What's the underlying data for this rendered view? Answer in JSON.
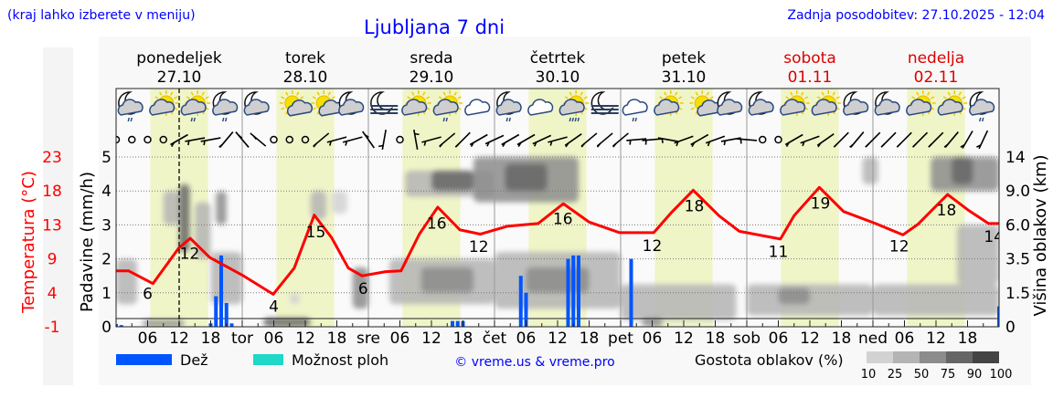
{
  "header": {
    "hint": "(kraj lahko izberete v meniju)",
    "title": "Ljubljana 7 dni",
    "updated": "Zadnja posodobitev: 27.10.2025 - 12:04"
  },
  "days": [
    {
      "name": "ponedeljek",
      "date": "27.10",
      "weekend": false
    },
    {
      "name": "torek",
      "date": "28.10",
      "weekend": false
    },
    {
      "name": "sreda",
      "date": "29.10",
      "weekend": false
    },
    {
      "name": "četrtek",
      "date": "30.10",
      "weekend": false
    },
    {
      "name": "petek",
      "date": "31.10",
      "weekend": false
    },
    {
      "name": "sobota",
      "date": "01.11",
      "weekend": true
    },
    {
      "name": "nedelja",
      "date": "02.11",
      "weekend": true
    }
  ],
  "colors": {
    "temperature": "#ff0000",
    "rain": "#0055ff",
    "showers": "#20d8c8",
    "daylight": "#f0f5c8",
    "link": "#0000ff",
    "weekend": "#dd0000"
  },
  "chart_data": {
    "type": "meteogram",
    "now_hour": 12,
    "x_tick_labels": [
      "06",
      "12",
      "18",
      "tor",
      "06",
      "12",
      "18",
      "sre",
      "06",
      "12",
      "18",
      "čet",
      "06",
      "12",
      "18",
      "pet",
      "06",
      "12",
      "18",
      "sob",
      "06",
      "12",
      "18",
      "ned",
      "06",
      "12",
      "18"
    ],
    "temperature_axis": {
      "label": "Temperatura (°C)",
      "ticks": [
        "23",
        "18",
        "13",
        "9",
        "4",
        "-1"
      ],
      "range": [
        -1,
        23
      ]
    },
    "precip_axis": {
      "label": "Padavine (mm/h)",
      "ticks": [
        "5",
        "4",
        "3",
        "2",
        "1",
        "0"
      ],
      "range": [
        0,
        5
      ]
    },
    "cloud_axis": {
      "label": "Višina oblakov (km)",
      "ticks": [
        "14",
        "9.0",
        "6.0",
        "3.5",
        "1.5",
        "0"
      ]
    },
    "temperature": [
      [
        0,
        6.9
      ],
      [
        2.4,
        6.9
      ],
      [
        7,
        5.1
      ],
      [
        11.9,
        10.1
      ],
      [
        14.1,
        11.5
      ],
      [
        17.8,
        8.8
      ],
      [
        24,
        6.3
      ],
      [
        29.9,
        3.6
      ],
      [
        33.9,
        7.3
      ],
      [
        37.7,
        14.8
      ],
      [
        41,
        11.6
      ],
      [
        44.2,
        7.3
      ],
      [
        46.8,
        6.2
      ],
      [
        51.3,
        6.8
      ],
      [
        54.2,
        6.9
      ],
      [
        57.7,
        12.1
      ],
      [
        61.2,
        15.9
      ],
      [
        65.4,
        12.7
      ],
      [
        69.3,
        12.1
      ],
      [
        74.4,
        13.2
      ],
      [
        80.3,
        13.6
      ],
      [
        85.1,
        16.4
      ],
      [
        90,
        13.8
      ],
      [
        95.8,
        12.3
      ],
      [
        102.3,
        12.3
      ],
      [
        105.6,
        15.1
      ],
      [
        109.8,
        18.3
      ],
      [
        114.7,
        14.7
      ],
      [
        118.6,
        12.5
      ],
      [
        126.4,
        11.4
      ],
      [
        129,
        14.7
      ],
      [
        133.8,
        18.7
      ],
      [
        138.4,
        15.3
      ],
      [
        144.5,
        13.6
      ],
      [
        149.7,
        12
      ],
      [
        152.6,
        13.5
      ],
      [
        158.2,
        17.7
      ],
      [
        162.1,
        15.5
      ],
      [
        166,
        13.6
      ],
      [
        168,
        13.6
      ]
    ],
    "temperature_labels": [
      {
        "hour": 6,
        "value": "6"
      },
      {
        "hour": 14,
        "value": "12"
      },
      {
        "hour": 30,
        "value": "4"
      },
      {
        "hour": 38,
        "value": "15"
      },
      {
        "hour": 47,
        "value": "6"
      },
      {
        "hour": 61,
        "value": "16"
      },
      {
        "hour": 69,
        "value": "12"
      },
      {
        "hour": 85,
        "value": "16"
      },
      {
        "hour": 102,
        "value": "12"
      },
      {
        "hour": 110,
        "value": "18"
      },
      {
        "hour": 126,
        "value": "11"
      },
      {
        "hour": 134,
        "value": "19"
      },
      {
        "hour": 149,
        "value": "12"
      },
      {
        "hour": 158,
        "value": "18"
      },
      {
        "hour": 167,
        "value": "14"
      }
    ],
    "rain_mmh": [
      [
        0,
        0.08
      ],
      [
        1,
        0.05
      ],
      [
        18,
        0.1
      ],
      [
        19,
        0.9
      ],
      [
        20,
        2.1
      ],
      [
        21,
        0.7
      ],
      [
        22,
        0.1
      ],
      [
        64,
        0.17
      ],
      [
        65,
        0.17
      ],
      [
        66,
        0.17
      ],
      [
        77,
        1.5
      ],
      [
        78,
        1.0
      ],
      [
        86,
        2.0
      ],
      [
        87,
        2.1
      ],
      [
        88,
        2.1
      ],
      [
        98,
        2.0
      ],
      [
        168,
        0.6
      ]
    ],
    "icons": [
      "night-cloud-rain",
      "sun-cloud",
      "sun-cloud-rain",
      "night-cloud-rain",
      "night-cloud",
      "sun-small-cloud",
      "sun-small-cloud",
      "night-cloud",
      "night-fog",
      "sun-cloud",
      "sun-cloud-rain",
      "cloud",
      "night-cloud-rain",
      "cloud",
      "sun-cloud-heavy-rain",
      "night-fog",
      "cloud-rain",
      "sun-cloud",
      "sun-small-cloud",
      "night-cloud",
      "night-cloud",
      "sun-cloud",
      "sun-cloud",
      "night-cloud",
      "night-cloud",
      "sun-cloud",
      "sun-cloud",
      "night-cloud-rain"
    ],
    "wind": [
      "calm",
      "calm",
      "calm",
      "calm",
      30,
      10,
      10,
      50,
      -50,
      -40,
      "calm",
      "calm",
      "calm",
      40,
      15,
      15,
      -55,
      80,
      "calm",
      -80,
      15,
      40,
      45,
      30,
      25,
      30,
      30,
      25,
      15,
      35,
      40,
      40,
      40,
      5,
      5,
      -10,
      20,
      30,
      20,
      10,
      -5,
      "calm",
      "calm",
      30,
      20,
      35,
      45,
      50,
      45,
      45,
      45,
      45,
      45,
      50,
      60,
      65
    ],
    "clouds": [
      {
        "h": [
          0,
          4
        ],
        "km": [
          1,
          3.5
        ],
        "d": 50
      },
      {
        "h": [
          5,
          13
        ],
        "km": [
          0,
          0.3
        ],
        "d": 75
      },
      {
        "h": [
          12,
          14
        ],
        "km": [
          4,
          10
        ],
        "d": 90
      },
      {
        "h": [
          9,
          12
        ],
        "km": [
          6,
          9
        ],
        "d": 50
      },
      {
        "h": [
          15,
          18
        ],
        "km": [
          3.5,
          8
        ],
        "d": 50
      },
      {
        "h": [
          19,
          21
        ],
        "km": [
          6,
          9
        ],
        "d": 75
      },
      {
        "h": [
          18,
          24
        ],
        "km": [
          1,
          4
        ],
        "d": 50
      },
      {
        "h": [
          28,
          37
        ],
        "km": [
          0,
          0.4
        ],
        "d": 90
      },
      {
        "h": [
          33,
          35
        ],
        "km": [
          1,
          1.5
        ],
        "d": 25
      },
      {
        "h": [
          37,
          40
        ],
        "km": [
          6.5,
          9
        ],
        "d": 50
      },
      {
        "h": [
          41,
          44
        ],
        "km": [
          7,
          9
        ],
        "d": 25
      },
      {
        "h": [
          45,
          48
        ],
        "km": [
          0.8,
          3
        ],
        "d": 75
      },
      {
        "h": [
          52,
          72
        ],
        "km": [
          1,
          3.5
        ],
        "d": 50
      },
      {
        "h": [
          58,
          68
        ],
        "km": [
          1.5,
          3
        ],
        "d": 75
      },
      {
        "h": [
          55,
          72
        ],
        "km": [
          8.5,
          12
        ],
        "d": 50
      },
      {
        "h": [
          60,
          68
        ],
        "km": [
          9,
          12
        ],
        "d": 90
      },
      {
        "h": [
          68,
          88
        ],
        "km": [
          8,
          14
        ],
        "d": 75
      },
      {
        "h": [
          74,
          82
        ],
        "km": [
          9,
          13
        ],
        "d": 90
      },
      {
        "h": [
          72,
          96
        ],
        "km": [
          0.8,
          4
        ],
        "d": 50
      },
      {
        "h": [
          78,
          90
        ],
        "km": [
          1.5,
          3
        ],
        "d": 75
      },
      {
        "h": [
          96,
          118
        ],
        "km": [
          0.3,
          2
        ],
        "d": 50
      },
      {
        "h": [
          100,
          104
        ],
        "km": [
          0,
          0.4
        ],
        "d": 75
      },
      {
        "h": [
          120,
          144
        ],
        "km": [
          0.5,
          2
        ],
        "d": 50
      },
      {
        "h": [
          126,
          132
        ],
        "km": [
          1,
          1.8
        ],
        "d": 75
      },
      {
        "h": [
          142,
          145
        ],
        "km": [
          10,
          14
        ],
        "d": 50
      },
      {
        "h": [
          144,
          168
        ],
        "km": [
          0.5,
          2
        ],
        "d": 50
      },
      {
        "h": [
          155,
          168
        ],
        "km": [
          9,
          14
        ],
        "d": 75
      },
      {
        "h": [
          159,
          163
        ],
        "km": [
          10,
          14
        ],
        "d": 90
      },
      {
        "h": [
          160,
          168
        ],
        "km": [
          2,
          6
        ],
        "d": 50
      }
    ]
  },
  "legend": {
    "rain": "Dež",
    "showers": "Možnost ploh",
    "copyright": "© vreme.us & vreme.pro",
    "density_title": "Gostota oblakov (%)",
    "density_levels": [
      "10",
      "25",
      "50",
      "75",
      "90",
      "100"
    ]
  }
}
